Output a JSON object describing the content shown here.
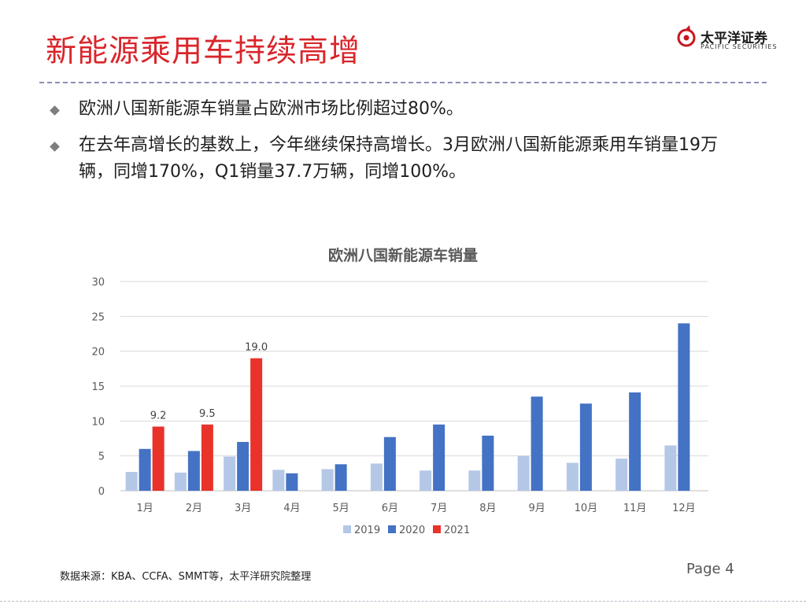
{
  "slide": {
    "title": "新能源乘用车持续高增",
    "bullets": [
      "欧洲八国新能源车销量占欧洲市场比例超过80%。",
      "在去年高增长的基数上，今年继续保持高增长。3月欧洲八国新能源乘用车销量19万辆，同增170%，Q1销量37.7万辆，同增100%。"
    ],
    "source": "数据来源：KBA、CCFA、SMMT等，太平洋研究院整理",
    "page": "Page 4"
  },
  "logo": {
    "name_cn": "太平洋证券",
    "name_en": "PACIFIC SECURITIES",
    "icon": "pacific-securities-logo-icon",
    "color": "#c8161d"
  },
  "colors": {
    "title": "#d9262b",
    "series_2019": "#b4c7e7",
    "series_2020": "#4472c4",
    "series_2021": "#e8322a"
  },
  "chart_data": {
    "type": "bar",
    "title": "欧洲八国新能源车销量",
    "categories": [
      "1月",
      "2月",
      "3月",
      "4月",
      "5月",
      "6月",
      "7月",
      "8月",
      "9月",
      "10月",
      "11月",
      "12月"
    ],
    "series": [
      {
        "name": "2019",
        "values": [
          2.7,
          2.6,
          4.9,
          3.0,
          3.1,
          3.9,
          2.9,
          2.9,
          5.0,
          4.0,
          4.6,
          6.5
        ]
      },
      {
        "name": "2020",
        "values": [
          6.0,
          5.7,
          7.0,
          2.5,
          3.8,
          7.7,
          9.5,
          7.9,
          13.5,
          12.5,
          14.1,
          24.0
        ]
      },
      {
        "name": "2021",
        "values": [
          9.2,
          9.5,
          19.0,
          null,
          null,
          null,
          null,
          null,
          null,
          null,
          null,
          null
        ]
      }
    ],
    "data_labels": {
      "2021": [
        "9.2",
        "9.5",
        "19.0"
      ]
    },
    "yticks": [
      "0",
      "5",
      "10",
      "15",
      "20",
      "25",
      "30"
    ],
    "ylim": [
      0,
      30
    ],
    "xlabel": "",
    "ylabel": "",
    "grid": true,
    "legend_position": "bottom"
  }
}
